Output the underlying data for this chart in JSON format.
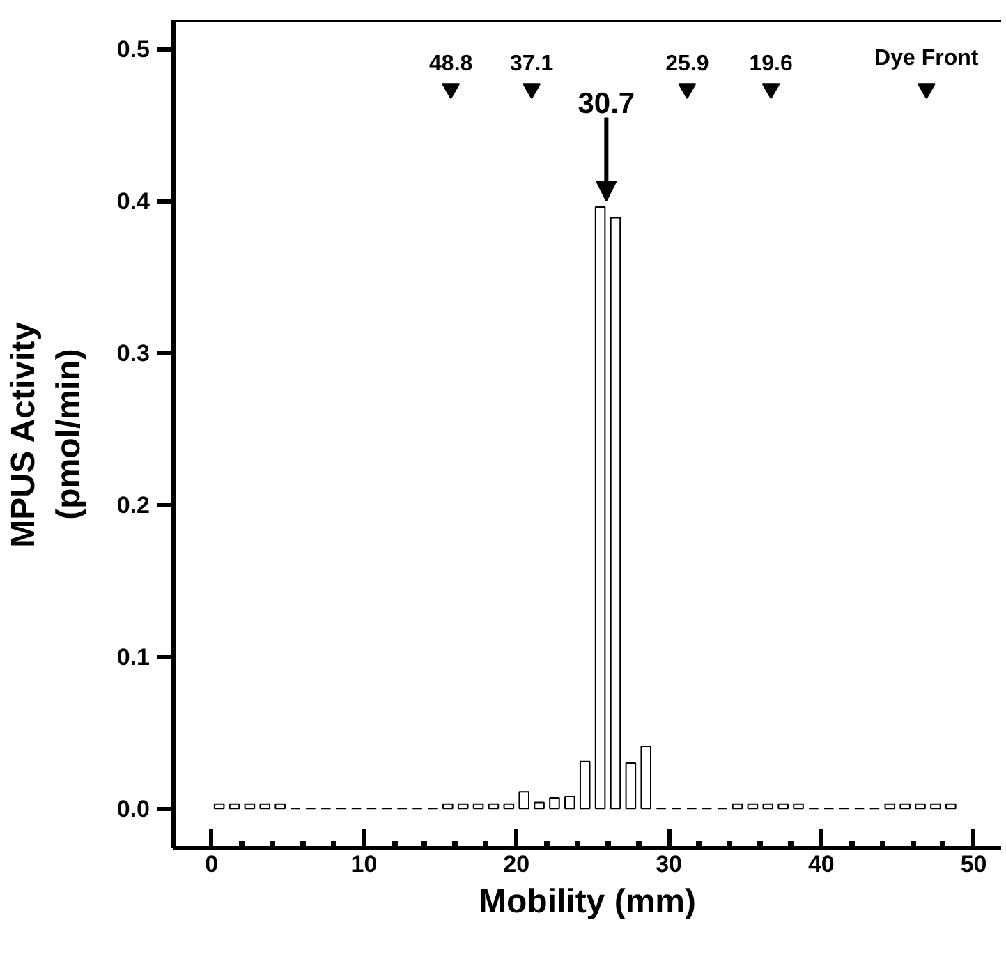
{
  "chart_data": {
    "type": "bar",
    "xlabel": "Mobility (mm)",
    "ylabel": "MPUS Activity\n(pmol/min)",
    "x": [
      0.5,
      1.5,
      2.5,
      3.5,
      4.5,
      5.5,
      6.5,
      7.5,
      8.5,
      9.5,
      10.5,
      11.5,
      12.5,
      13.5,
      14.5,
      15.5,
      16.5,
      17.5,
      18.5,
      19.5,
      20.5,
      21.5,
      22.5,
      23.5,
      24.5,
      25.5,
      26.5,
      27.5,
      28.5,
      29.5,
      30.5,
      31.5,
      32.5,
      33.5,
      34.5,
      35.5,
      36.5,
      37.5,
      38.5,
      39.5,
      40.5,
      41.5,
      42.5,
      43.5,
      44.5,
      45.5,
      46.5,
      47.5,
      48.5
    ],
    "values": [
      0.003,
      0.003,
      0.003,
      0.003,
      0.003,
      0,
      0,
      0,
      0,
      0,
      0,
      0,
      0,
      0,
      0,
      0.003,
      0.003,
      0.003,
      0.003,
      0.003,
      0.011,
      0.004,
      0.007,
      0.008,
      0.031,
      0.396,
      0.389,
      0.03,
      0.041,
      0,
      0,
      0,
      0,
      0,
      0.003,
      0.003,
      0.003,
      0.003,
      0.003,
      0,
      0,
      0,
      0,
      0,
      0.003,
      0.003,
      0.003,
      0.003,
      0.003
    ],
    "colors": [
      "#ffffff",
      "#ffffff",
      "#ffffff",
      "#ffffff",
      "#ffffff",
      "#000000",
      "#000000",
      "#000000",
      "#000000",
      "#000000",
      "#000000",
      "#000000",
      "#000000",
      "#000000",
      "#000000",
      "#ffffff",
      "#ffffff",
      "#ffffff",
      "#ffffff",
      "#ffffff",
      "#ffffff",
      "#ffffff",
      "#ffffff",
      "#ffffff",
      "#ffffff",
      "#ffffff",
      "#ffffff",
      "#ffffff",
      "#ffffff",
      "#000000",
      "#000000",
      "#000000",
      "#000000",
      "#000000",
      "#ffffff",
      "#ffffff",
      "#ffffff",
      "#ffffff",
      "#ffffff",
      "#000000",
      "#000000",
      "#000000",
      "#000000",
      "#000000",
      "#ffffff",
      "#ffffff",
      "#ffffff",
      "#ffffff",
      "#ffffff"
    ],
    "xlim": [
      -2.5,
      51.8
    ],
    "ylim": [
      -0.026,
      0.519
    ],
    "xticks": [
      0,
      {
        "value": 2,
        "label": null
      },
      {
        "value": 4,
        "label": null
      },
      {
        "value": 6,
        "label": null
      },
      {
        "value": 8,
        "label": null
      },
      10,
      {
        "value": 12,
        "label": null
      },
      {
        "value": 14,
        "label": null
      },
      {
        "value": 16,
        "label": null
      },
      {
        "value": 18,
        "label": null
      },
      20,
      {
        "value": 22,
        "label": null
      },
      {
        "value": 24,
        "label": null
      },
      {
        "value": 26,
        "label": null
      },
      {
        "value": 28,
        "label": null
      },
      30,
      {
        "value": 32,
        "label": null
      },
      {
        "value": 34,
        "label": null
      },
      {
        "value": 36,
        "label": null
      },
      {
        "value": 38,
        "label": null
      },
      40,
      {
        "value": 42,
        "label": null
      },
      {
        "value": 44,
        "label": null
      },
      {
        "value": 46,
        "label": null
      },
      {
        "value": 48,
        "label": null
      },
      50
    ],
    "yticks": [
      {
        "value": 0,
        "label": "0.0"
      },
      0.1,
      0.2,
      0.3,
      0.4,
      0.5
    ],
    "grid": false,
    "annotations": [
      {
        "text": "48.8",
        "x": 15.7,
        "y": 0.474
      },
      {
        "text": "37.1",
        "x": 21.0,
        "y": 0.474
      },
      {
        "text": "25.9",
        "x": 31.2,
        "y": 0.474
      },
      {
        "text": "19.6",
        "x": 36.7,
        "y": 0.474
      },
      {
        "text": "Dye Front",
        "x": 46.9,
        "y": 0.474
      },
      {
        "text": "30.7",
        "x": 25.9,
        "y": 0.4
      }
    ]
  }
}
